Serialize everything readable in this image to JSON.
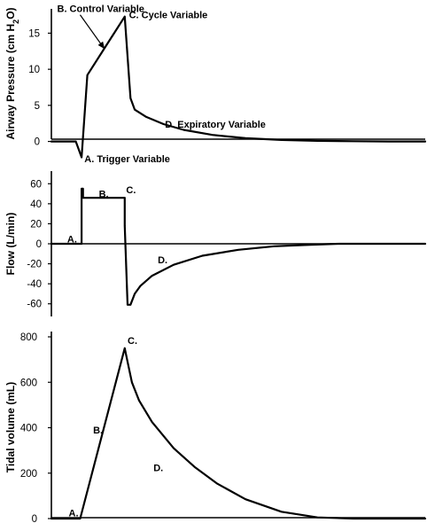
{
  "chart_data": [
    {
      "type": "line",
      "ylabel": "Airway Pressure (cm H2O)",
      "ylabel_main": "Airway Pressure (cm H",
      "ylabel_sub": "2",
      "ylabel_end": "O)",
      "ylim": [
        -3,
        18
      ],
      "yticks": [
        0,
        5,
        10,
        15
      ],
      "grid": false,
      "x": [
        0,
        17,
        21,
        25,
        51,
        55,
        58,
        66,
        78,
        92,
        112,
        135,
        160,
        185,
        210,
        235,
        260
      ],
      "y": [
        0,
        0,
        -2.2,
        9.2,
        17.3,
        6.0,
        4.4,
        3.4,
        2.4,
        1.6,
        0.9,
        0.45,
        0.2,
        0.08,
        0.03,
        0.0,
        0.0
      ],
      "annotations": [
        {
          "text": "B. Control Variable",
          "x": 4,
          "y": 18.4,
          "arrow_to": [
            37,
            12.8
          ]
        },
        {
          "text": "C. Cycle Variable",
          "x": 54,
          "y": 17.6
        },
        {
          "text": "D. Expiratory Variable",
          "x": 79,
          "y": 2.4
        },
        {
          "text": "A. Trigger Variable",
          "x": 23,
          "y": -2.4
        }
      ]
    },
    {
      "type": "line",
      "ylabel": "Flow  (L/min)",
      "ylim": [
        -70,
        70
      ],
      "yticks": [
        60,
        40,
        20,
        0,
        -20,
        -40,
        -60
      ],
      "grid": false,
      "x": [
        0,
        21,
        21,
        22,
        22,
        51,
        51,
        53,
        55,
        58,
        62,
        70,
        85,
        105,
        130,
        155,
        180,
        200,
        230,
        260
      ],
      "y": [
        0,
        0,
        55,
        55,
        46,
        46,
        18,
        -61,
        -61,
        -50,
        -42,
        -32,
        -21,
        -12,
        -6,
        -2.5,
        -1,
        0,
        0,
        0
      ],
      "annotations": [
        {
          "text": "A.",
          "x": 11,
          "y": 5
        },
        {
          "text": "B.",
          "x": 33,
          "y": 50
        },
        {
          "text": "C.",
          "x": 52,
          "y": 54
        },
        {
          "text": "D.",
          "x": 74,
          "y": -16
        }
      ]
    },
    {
      "type": "line",
      "ylabel": "Tidal volume  (mL)",
      "ylim": [
        0,
        800
      ],
      "yticks": [
        0,
        200,
        400,
        600,
        800
      ],
      "grid": false,
      "x": [
        0,
        20,
        51,
        53,
        56,
        61,
        70,
        85,
        100,
        115,
        135,
        160,
        185,
        210,
        235,
        260
      ],
      "y": [
        0,
        0,
        750,
        690,
        600,
        520,
        425,
        310,
        225,
        155,
        85,
        30,
        5,
        0,
        0,
        0
      ],
      "annotations": [
        {
          "text": "C.",
          "x": 53,
          "y": 785
        },
        {
          "text": "B.",
          "x": 29,
          "y": 390
        },
        {
          "text": "D.",
          "x": 71,
          "y": 225
        },
        {
          "text": "A.",
          "x": 12,
          "y": 25
        }
      ]
    }
  ]
}
